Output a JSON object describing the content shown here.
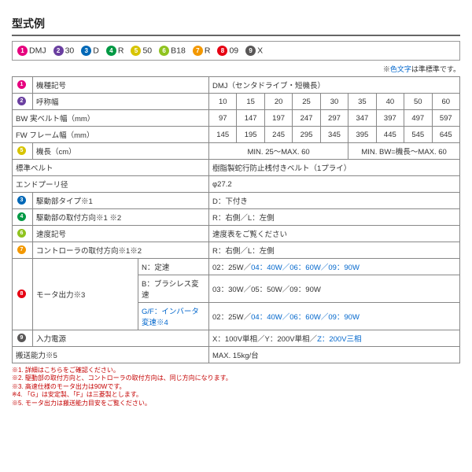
{
  "title": "型式例",
  "legend": [
    {
      "n": "1",
      "c": "c1",
      "t": "DMJ"
    },
    {
      "n": "2",
      "c": "c2",
      "t": "30"
    },
    {
      "n": "3",
      "c": "c3",
      "t": "D"
    },
    {
      "n": "4",
      "c": "c4",
      "t": "R"
    },
    {
      "n": "5",
      "c": "c5",
      "t": "50"
    },
    {
      "n": "6",
      "c": "c6",
      "t": "B18"
    },
    {
      "n": "7",
      "c": "c7",
      "t": "R"
    },
    {
      "n": "8",
      "c": "c8",
      "t": "09"
    },
    {
      "n": "9",
      "c": "c9",
      "t": "X"
    }
  ],
  "noteTop": {
    "pre": "※",
    "blue": "色文字",
    "post": "は準標準です。"
  },
  "rows": {
    "r1": {
      "lbl": "機種記号",
      "val": "DMJ（センタドライブ・短機長）"
    },
    "r2": {
      "lbl": "呼称幅",
      "v": [
        "10",
        "15",
        "20",
        "25",
        "30",
        "35",
        "40",
        "50",
        "60"
      ]
    },
    "r3": {
      "lbl": "BW 実ベルト幅（mm）",
      "v": [
        "97",
        "147",
        "197",
        "247",
        "297",
        "347",
        "397",
        "497",
        "597"
      ]
    },
    "r4": {
      "lbl": "FW フレーム幅（mm）",
      "v": [
        "145",
        "195",
        "245",
        "295",
        "345",
        "395",
        "445",
        "545",
        "645"
      ]
    },
    "r5": {
      "lbl": "機長（cm）",
      "v1": "MIN. 25～MAX. 60",
      "v2": "MIN. BW=機長～MAX. 60"
    },
    "r6": {
      "lbl": "標準ベルト",
      "val": "樹脂製蛇行防止桟付きベルト（1プライ）"
    },
    "r7": {
      "lbl": "エンドプーリ径",
      "val": "φ27.2"
    },
    "r8": {
      "lbl": "駆動部タイプ※1",
      "val": "D：下付き"
    },
    "r9": {
      "lbl": "駆動部の取付方向※1 ※2",
      "val": "R：右側／L：左側"
    },
    "r10": {
      "lbl": "速度記号",
      "val": "速度表をご覧ください"
    },
    "r11": {
      "lbl": "コントローラの取付方向※1※2",
      "val": "R：右側／L：左側"
    },
    "r12": {
      "lbl": "モータ出力※3",
      "s1": "N：定速",
      "v1a": "02：25W／",
      "v1b": "04：40W／06：60W／09：90W",
      "s2": "B：ブラシレス変速",
      "v2": "03：30W／05：50W／09：90W",
      "s3": "G/F：インバータ変速※4",
      "v3a": "02：25W／",
      "v3b": "04：40W／06：60W／09：90W"
    },
    "r13": {
      "lbl": "入力電源",
      "val": "X：100V単相／Y：200V単相／",
      "valb": "Z：200V三相"
    },
    "r14": {
      "lbl": "搬送能力※5",
      "val": "MAX. 15kg/台"
    }
  },
  "foot": [
    "※1. 詳細はこちらをご確認ください。",
    "※2. 駆動部の取付方向と、コントローラの取付方向は、同じ方向になります。",
    "※3. 高速仕様のモータ出力は90Wです。",
    "※4. 「G」は安定製、「F」は三菱製とします。",
    "※5. モータ出力は搬送能力目安をご覧ください。"
  ]
}
